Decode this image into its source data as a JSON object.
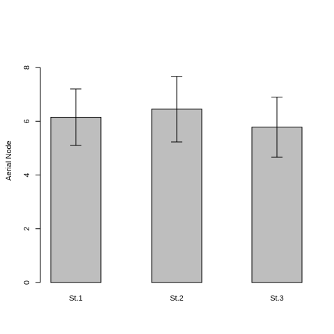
{
  "chart_data": {
    "type": "bar",
    "title": "",
    "xlabel": "",
    "ylabel": "Aerial Node",
    "categories": [
      "St.1",
      "St.2",
      "St.3"
    ],
    "values": [
      6.15,
      6.45,
      5.78
    ],
    "error_low": [
      5.1,
      5.23,
      4.66
    ],
    "error_high": [
      7.2,
      7.67,
      6.9
    ],
    "ylim": [
      0,
      8
    ],
    "yticks": [
      0,
      2,
      4,
      6,
      8
    ],
    "bar_color": "#bebebe",
    "edge_color": "#000000",
    "grid": false,
    "legend": "none"
  }
}
